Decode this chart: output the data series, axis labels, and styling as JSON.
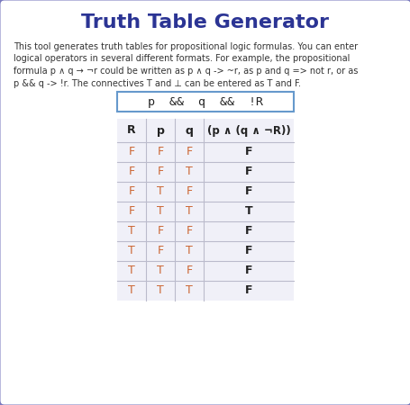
{
  "title": "Truth Table Generator",
  "title_color": "#2b3494",
  "bg_color": "#ffffff",
  "border_color": "#7b7bbf",
  "desc_lines": [
    "This tool generates truth tables for propositional logic formulas. You can enter",
    "logical operators in several different formats. For example, the propositional",
    "formula p ∧ q → ¬r could be written as p ∧ q -> ~r, as p and q => not r, or as",
    "p && q -> !r. The connectives T and ⊥ can be entered as T and F."
  ],
  "desc_color": "#333333",
  "input_text": "p  &&  q  &&  !R",
  "input_border_color": "#6699cc",
  "input_bg": "#ffffff",
  "table_header": [
    "R",
    "p",
    "q",
    "(p ∧ (q ∧ ¬R))"
  ],
  "table_bg": "#f0f0f8",
  "table_line_color": "#bbbbcc",
  "table_rows": [
    [
      "F",
      "F",
      "F",
      "F"
    ],
    [
      "F",
      "F",
      "T",
      "F"
    ],
    [
      "F",
      "T",
      "F",
      "F"
    ],
    [
      "F",
      "T",
      "T",
      "T"
    ],
    [
      "T",
      "F",
      "F",
      "F"
    ],
    [
      "T",
      "F",
      "T",
      "F"
    ],
    [
      "T",
      "T",
      "F",
      "F"
    ],
    [
      "T",
      "T",
      "T",
      "F"
    ]
  ],
  "cell_color": "#cc6633",
  "result_color": "#222222",
  "header_color": "#222222"
}
